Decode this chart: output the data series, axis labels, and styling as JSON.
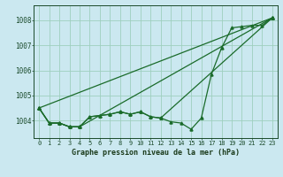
{
  "title": "Graphe pression niveau de la mer (hPa)",
  "bg_color": "#cbe8f0",
  "grid_color": "#9ecfbe",
  "line_color": "#1a6b2a",
  "xlim": [
    -0.5,
    23.5
  ],
  "ylim": [
    1003.3,
    1008.6
  ],
  "yticks": [
    1004,
    1005,
    1006,
    1007,
    1008
  ],
  "xticks": [
    0,
    1,
    2,
    3,
    4,
    5,
    6,
    7,
    8,
    9,
    10,
    11,
    12,
    13,
    14,
    15,
    16,
    17,
    18,
    19,
    20,
    21,
    22,
    23
  ],
  "series_main": [
    1004.5,
    1003.9,
    1003.9,
    1003.75,
    1003.75,
    1004.15,
    1004.2,
    1004.25,
    1004.35,
    1004.25,
    1004.35,
    1004.15,
    1004.1,
    1003.95,
    1003.9,
    1003.65,
    1004.1,
    1005.85,
    1006.9,
    1007.7,
    1007.75,
    1007.8,
    1007.8,
    1008.1
  ],
  "line2_x": [
    0,
    23
  ],
  "line2_y": [
    1004.5,
    1008.1
  ],
  "line3_x": [
    0,
    1,
    2,
    3,
    4,
    23
  ],
  "line3_y": [
    1004.5,
    1003.9,
    1003.9,
    1003.75,
    1003.75,
    1008.1
  ],
  "line4_x": [
    0,
    1,
    2,
    3,
    4,
    5,
    6,
    7,
    8,
    9,
    10,
    11,
    12,
    23
  ],
  "line4_y": [
    1004.5,
    1003.9,
    1003.9,
    1003.75,
    1003.75,
    1004.15,
    1004.2,
    1004.25,
    1004.35,
    1004.25,
    1004.35,
    1004.15,
    1004.1,
    1008.1
  ]
}
